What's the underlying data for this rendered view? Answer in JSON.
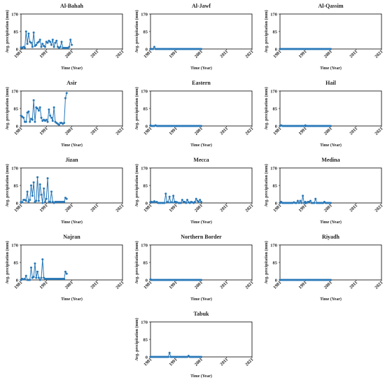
{
  "figure": {
    "xlabel": "Time (Year)",
    "ylabel": "Avg. precipitation (mm)",
    "x_ticks": [
      "1981",
      "1991",
      "2001",
      "2011",
      "2021"
    ],
    "y_ticks": [
      "0",
      "85",
      "170"
    ],
    "line_color": "#2878b8",
    "marker_color": "#2878b8"
  },
  "chart_data": [
    {
      "type": "line",
      "title": "Al-Bahah",
      "xlim": [
        1981,
        2021
      ],
      "ylim": [
        0,
        170
      ],
      "x_start": 1981,
      "x_step": 0.5,
      "grid": false,
      "values": [
        8,
        6,
        10,
        5,
        85,
        25,
        75,
        35,
        30,
        10,
        80,
        15,
        20,
        30,
        35,
        45,
        10,
        25,
        15,
        10,
        35,
        30,
        40,
        35,
        20,
        45,
        10,
        30,
        40,
        10,
        5,
        10,
        35,
        5,
        5,
        5,
        5,
        5,
        10,
        45,
        20
      ]
    },
    {
      "type": "line",
      "title": "Al-Jawf",
      "xlim": [
        1981,
        2021
      ],
      "ylim": [
        0,
        170
      ],
      "x_start": 1981,
      "x_step": 0.5,
      "grid": false,
      "values": [
        0,
        0,
        0,
        10,
        0,
        0,
        0,
        0,
        0,
        0,
        0,
        0,
        0,
        0,
        0,
        0,
        0,
        0,
        0,
        0,
        0,
        0,
        0,
        0,
        0,
        0,
        0,
        0,
        0,
        0,
        0,
        0,
        0,
        0,
        0,
        0,
        0,
        0,
        0,
        0,
        0
      ]
    },
    {
      "type": "line",
      "title": "Al-Qassim",
      "xlim": [
        1981,
        2021
      ],
      "ylim": [
        0,
        170
      ],
      "x_start": 1981,
      "x_step": 0.5,
      "grid": false,
      "values": [
        0,
        0,
        0,
        0,
        0,
        0,
        0,
        0,
        0,
        0,
        0,
        0,
        0,
        0,
        0,
        0,
        0,
        0,
        0,
        0,
        0,
        0,
        0,
        0,
        0,
        0,
        0,
        0,
        0,
        0,
        0,
        0,
        0,
        0,
        0,
        0,
        0,
        0,
        0,
        0,
        0
      ]
    },
    {
      "type": "line",
      "title": "Asir",
      "xlim": [
        1981,
        2021
      ],
      "ylim": [
        0,
        170
      ],
      "x_start": 1981,
      "x_step": 0.5,
      "grid": false,
      "values": [
        50,
        45,
        40,
        20,
        20,
        65,
        70,
        20,
        35,
        30,
        125,
        20,
        90,
        85,
        75,
        90,
        40,
        25,
        30,
        25,
        30,
        20,
        80,
        50,
        40,
        25,
        90,
        20,
        15,
        10,
        5,
        15,
        15,
        10,
        15,
        135,
        160
      ]
    },
    {
      "type": "line",
      "title": "Eastern",
      "xlim": [
        1981,
        2021
      ],
      "ylim": [
        0,
        170
      ],
      "x_start": 1981,
      "x_step": 0.5,
      "grid": false,
      "values": [
        3,
        0,
        0,
        0,
        3,
        0,
        0,
        0,
        0,
        0,
        0,
        0,
        0,
        0,
        0,
        0,
        0,
        0,
        0,
        0,
        0,
        0,
        0,
        0,
        0,
        0,
        0,
        0,
        0,
        0,
        0,
        0,
        0,
        0,
        0,
        0,
        0,
        0,
        0,
        0,
        0
      ]
    },
    {
      "type": "line",
      "title": "Hail",
      "xlim": [
        1981,
        2021
      ],
      "ylim": [
        0,
        170
      ],
      "x_start": 1981,
      "x_step": 0.5,
      "grid": false,
      "values": [
        0,
        3,
        0,
        0,
        0,
        0,
        0,
        0,
        0,
        0,
        0,
        0,
        0,
        0,
        0,
        0,
        0,
        0,
        0,
        0,
        3,
        0,
        0,
        0,
        0,
        0,
        0,
        0,
        0,
        0,
        0,
        0,
        0,
        0,
        0,
        0,
        0,
        0,
        0,
        0,
        0
      ]
    },
    {
      "type": "line",
      "title": "Jizan",
      "xlim": [
        1981,
        2021
      ],
      "ylim": [
        0,
        170
      ],
      "x_start": 1981,
      "x_step": 0.5,
      "grid": false,
      "values": [
        5,
        3,
        15,
        15,
        10,
        55,
        5,
        15,
        85,
        35,
        100,
        5,
        10,
        125,
        10,
        90,
        40,
        0,
        70,
        5,
        20,
        120,
        5,
        5,
        55,
        5,
        0,
        5,
        5,
        5,
        5,
        5,
        5,
        5,
        5,
        25,
        20
      ]
    },
    {
      "type": "line",
      "title": "Mecca",
      "xlim": [
        1981,
        2021
      ],
      "ylim": [
        0,
        170
      ],
      "x_start": 1981,
      "x_step": 0.5,
      "grid": false,
      "values": [
        5,
        5,
        3,
        8,
        3,
        5,
        0,
        0,
        0,
        0,
        0,
        0,
        45,
        5,
        3,
        30,
        3,
        3,
        35,
        5,
        5,
        3,
        0,
        0,
        0,
        15,
        5,
        5,
        0,
        15,
        3,
        0,
        5,
        3,
        0,
        5,
        20,
        10,
        5,
        15,
        5
      ]
    },
    {
      "type": "line",
      "title": "Medina",
      "xlim": [
        1981,
        2021
      ],
      "ylim": [
        0,
        170
      ],
      "x_start": 1981,
      "x_step": 0.5,
      "grid": false,
      "values": [
        0,
        5,
        0,
        0,
        0,
        0,
        0,
        0,
        0,
        0,
        0,
        3,
        0,
        0,
        10,
        0,
        10,
        0,
        35,
        0,
        5,
        0,
        5,
        5,
        10,
        0,
        0,
        0,
        20,
        0,
        0,
        0,
        0,
        0,
        0,
        5,
        0,
        0,
        0,
        0,
        0
      ]
    },
    {
      "type": "line",
      "title": "Najran",
      "xlim": [
        1981,
        2021
      ],
      "ylim": [
        0,
        170
      ],
      "x_start": 1981,
      "x_step": 0.5,
      "grid": false,
      "values": [
        0,
        5,
        3,
        5,
        20,
        0,
        0,
        0,
        60,
        10,
        15,
        80,
        10,
        40,
        10,
        0,
        10,
        100,
        10,
        5,
        5,
        5,
        5,
        5,
        5,
        5,
        5,
        5,
        5,
        5,
        5,
        5,
        5,
        5,
        5,
        40,
        30
      ]
    },
    {
      "type": "line",
      "title": "Northern Border",
      "xlim": [
        1981,
        2021
      ],
      "ylim": [
        0,
        170
      ],
      "x_start": 1981,
      "x_step": 0.5,
      "grid": false,
      "values": [
        3,
        0,
        0,
        0,
        0,
        0,
        0,
        0,
        0,
        0,
        0,
        0,
        0,
        0,
        0,
        0,
        0,
        0,
        0,
        0,
        0,
        0,
        0,
        0,
        0,
        0,
        0,
        0,
        0,
        0,
        0,
        0,
        0,
        0,
        0,
        0,
        0,
        0,
        0,
        0,
        0
      ]
    },
    {
      "type": "line",
      "title": "Riyadh",
      "xlim": [
        1981,
        2021
      ],
      "ylim": [
        0,
        170
      ],
      "x_start": 1981,
      "x_step": 0.5,
      "grid": false,
      "values": [
        0,
        0,
        0,
        0,
        0,
        0,
        0,
        0,
        0,
        0,
        0,
        0,
        0,
        0,
        0,
        0,
        0,
        0,
        0,
        0,
        0,
        0,
        0,
        0,
        0,
        0,
        0,
        0,
        0,
        0,
        0,
        0,
        0,
        0,
        0,
        0,
        0,
        0,
        0,
        0,
        0
      ]
    },
    {
      "type": "line",
      "title": "Tabuk",
      "xlim": [
        1981,
        2021
      ],
      "ylim": [
        0,
        170
      ],
      "x_start": 1981,
      "x_step": 0.5,
      "grid": false,
      "values": [
        0,
        0,
        0,
        0,
        0,
        0,
        0,
        0,
        0,
        0,
        0,
        0,
        0,
        0,
        0,
        20,
        0,
        0,
        0,
        0,
        0,
        0,
        0,
        0,
        0,
        0,
        0,
        0,
        0,
        0,
        5,
        0,
        0,
        0,
        0,
        0,
        0,
        0,
        0,
        0,
        0
      ]
    }
  ]
}
